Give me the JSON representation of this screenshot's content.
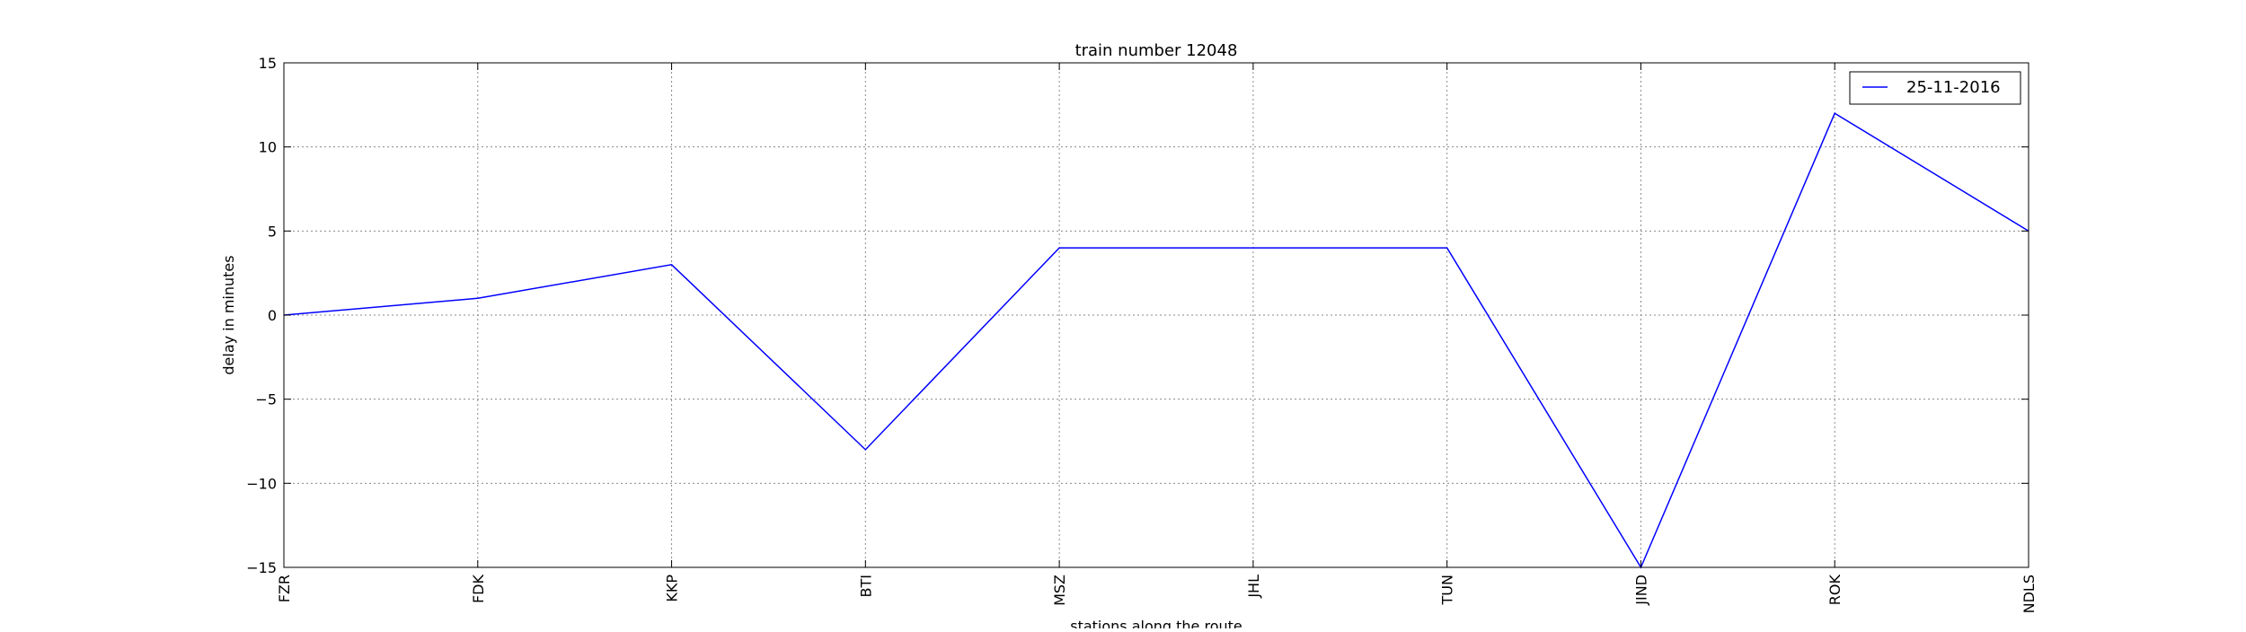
{
  "chart_data": {
    "type": "line",
    "title": "train number 12048",
    "xlabel": "stations along the route",
    "ylabel": "delay in minutes",
    "categories": [
      "FZR",
      "FDK",
      "KKP",
      "BTI",
      "MSZ",
      "JHL",
      "TUN",
      "JIND",
      "ROK",
      "NDLS"
    ],
    "series": [
      {
        "name": "25-11-2016",
        "values": [
          0,
          1,
          3,
          -8,
          4,
          4,
          4,
          -15,
          12,
          5
        ],
        "color": "#0000ff"
      }
    ],
    "ylim": [
      -15,
      15
    ],
    "yticks": [
      -15,
      -10,
      -5,
      0,
      5,
      10,
      15
    ],
    "ytick_labels": [
      "−15",
      "−10",
      "−5",
      "0",
      "5",
      "10",
      "15"
    ],
    "grid": true,
    "legend_position": "top-right"
  }
}
